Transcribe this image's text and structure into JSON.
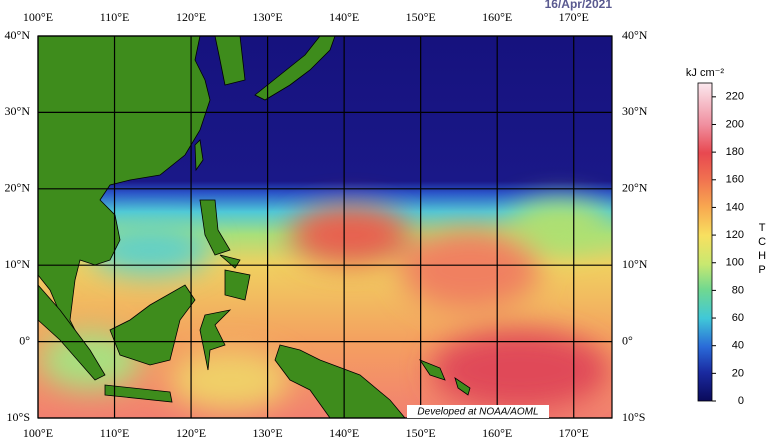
{
  "header": {
    "date": "16/Apr/2021"
  },
  "map": {
    "lonlim": [
      100,
      175
    ],
    "latlim": [
      -10,
      40
    ],
    "lon_ticks": [
      {
        "value": 100,
        "label": "100°E"
      },
      {
        "value": 110,
        "label": "110°E"
      },
      {
        "value": 120,
        "label": "120°E"
      },
      {
        "value": 130,
        "label": "130°E"
      },
      {
        "value": 140,
        "label": "140°E"
      },
      {
        "value": 150,
        "label": "150°E"
      },
      {
        "value": 160,
        "label": "160°E"
      },
      {
        "value": 170,
        "label": "170°E"
      }
    ],
    "lat_ticks": [
      {
        "value": 40,
        "label": "40°N"
      },
      {
        "value": 30,
        "label": "30°N"
      },
      {
        "value": 20,
        "label": "20°N"
      },
      {
        "value": 10,
        "label": "10°N"
      },
      {
        "value": 0,
        "label": "0°"
      },
      {
        "value": -10,
        "label": "10°S"
      }
    ],
    "credit": "Developed at NOAA/AOML"
  },
  "colorbar": {
    "unit": "kJ cm⁻²",
    "label": "TCHP",
    "lim": [
      0,
      230
    ],
    "ticks": [
      0,
      20,
      40,
      60,
      80,
      100,
      120,
      140,
      160,
      180,
      200,
      220
    ]
  }
}
